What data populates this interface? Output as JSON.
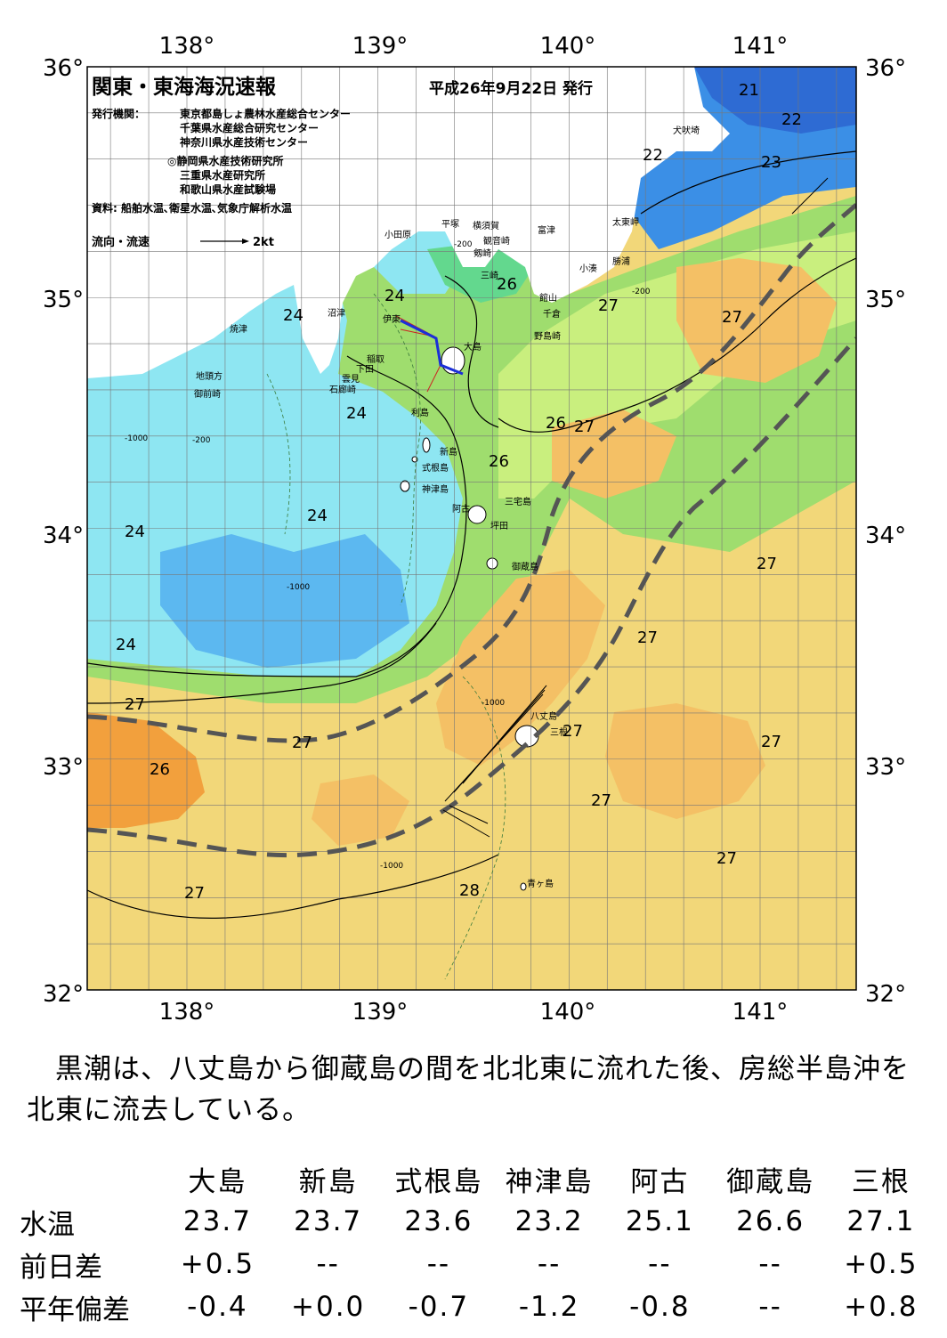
{
  "map": {
    "title": "関東・東海海況速報",
    "date": "平成26年9月22日 発行",
    "issuer_label": "発行機関：",
    "issuers": [
      "東京都島しょ農林水産総合センター",
      "千葉県水産総合研究センター",
      "神奈川県水産技術センター",
      "◎静岡県水産技術研究所",
      "三重県水産研究所",
      "和歌山県水産試験場"
    ],
    "sources": "資料: 船舶水温､衛星水温､気象庁解析水温",
    "current_legend": "流向・流速",
    "current_scale": "2kt",
    "lon_labels": [
      "138°",
      "139°",
      "140°",
      "141°"
    ],
    "lat_labels": [
      "36°",
      "35°",
      "34°",
      "33°",
      "32°"
    ],
    "place_names": [
      "犬吠埼",
      "太東岬",
      "勝浦",
      "小湊",
      "館山",
      "千倉",
      "野島崎",
      "富津",
      "横須賀",
      "観音崎",
      "剱崎",
      "三崎",
      "平塚",
      "小田原",
      "沼津",
      "伊東",
      "大島",
      "稲取",
      "下田",
      "雲見",
      "石廊崎",
      "焼津",
      "地頭方",
      "御前崎",
      "利島",
      "新島",
      "式根島",
      "神津島",
      "阿古",
      "三宅島",
      "坪田",
      "御蔵島",
      "八丈島",
      "三根",
      "青ヶ島"
    ],
    "isotherm_labels": [
      "21",
      "22",
      "23",
      "22",
      "24",
      "24",
      "24",
      "24",
      "24",
      "24",
      "26",
      "26",
      "26",
      "27",
      "27",
      "27",
      "27",
      "27",
      "27",
      "27",
      "27",
      "27",
      "27",
      "27",
      "27",
      "28",
      "26"
    ],
    "depth_labels": [
      "-200",
      "-1000"
    ],
    "colors": {
      "t21": "#2e6bd3",
      "t22": "#3b8fe6",
      "t23": "#5cb8f0",
      "t24": "#8ee6f2",
      "t25": "#63d88e",
      "t26": "#9fdd6e",
      "t26b": "#c9ef7e",
      "t27": "#f2d779",
      "t27b": "#f4c065",
      "t28": "#f2a03d",
      "land": "#ffffff",
      "kuroshio": "#555555"
    }
  },
  "summary_text": "　黒潮は、八丈島から御蔵島の間を北北東に流れた後、房総半島沖を北東に流去している。",
  "stats": {
    "stations": [
      "大島",
      "新島",
      "式根島",
      "神津島",
      "阿古",
      "御蔵島",
      "三根"
    ],
    "rows": [
      {
        "label": "水温",
        "values": [
          "23.7",
          "23.7",
          "23.6",
          "23.2",
          "25.1",
          "26.6",
          "27.1"
        ]
      },
      {
        "label": "前日差",
        "values": [
          "+0.5",
          "--",
          "--",
          "--",
          "--",
          "--",
          "+0.5"
        ]
      },
      {
        "label": "平年偏差",
        "values": [
          "-0.4",
          "+0.0",
          "-0.7",
          "-1.2",
          "-0.8",
          "--",
          "+0.8"
        ]
      }
    ]
  }
}
